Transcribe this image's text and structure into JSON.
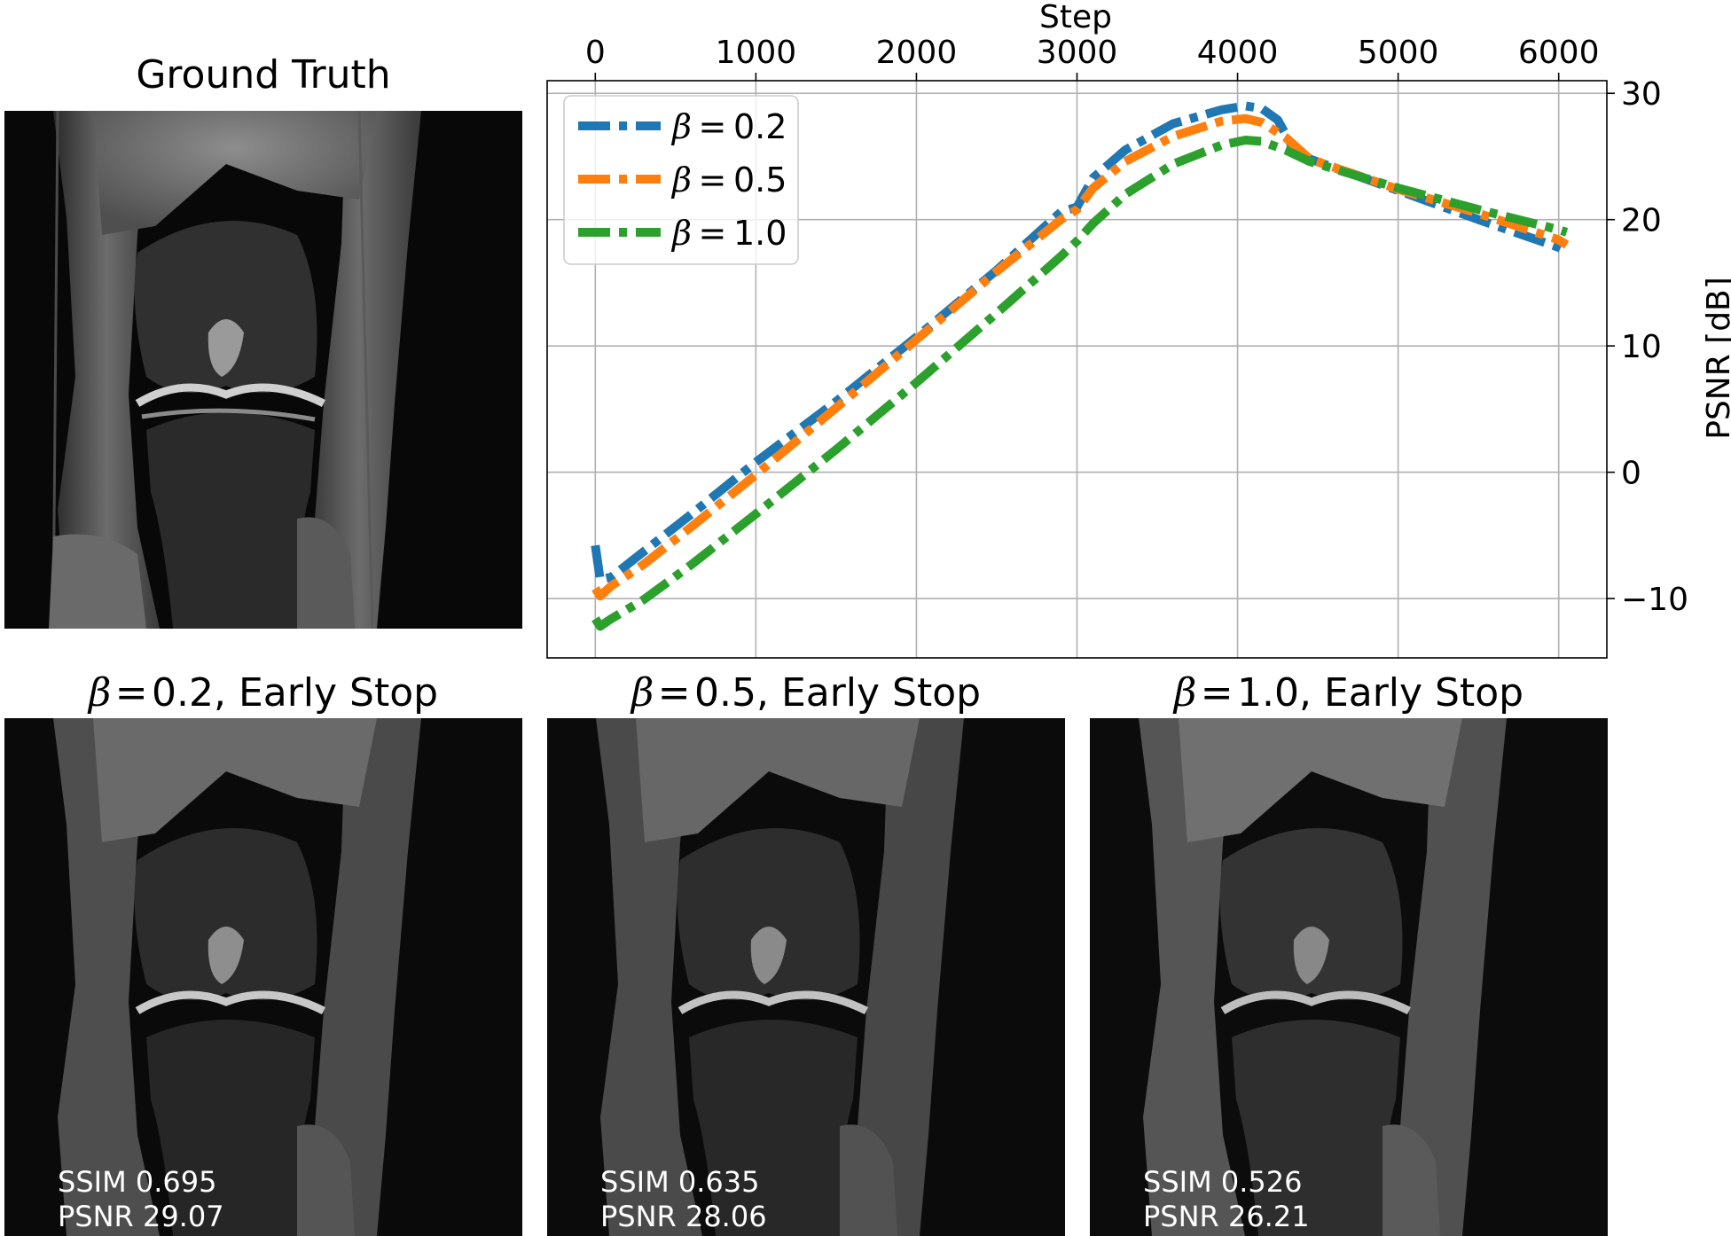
{
  "panels": {
    "ground_truth": {
      "title": "Ground Truth"
    },
    "recon": [
      {
        "beta": "0.2",
        "suffix": ", Early Stop",
        "ssim_label": "SSIM 0.695",
        "psnr_label": "PSNR 29.07"
      },
      {
        "beta": "0.5",
        "suffix": ", Early Stop",
        "ssim_label": "SSIM 0.635",
        "psnr_label": "PSNR 28.06"
      },
      {
        "beta": "1.0",
        "suffix": ", Early Stop",
        "ssim_label": "SSIM 0.526",
        "psnr_label": "PSNR 26.21"
      }
    ]
  },
  "chart_data": {
    "type": "line",
    "xlabel": "Step",
    "ylabel": "PSNR [dB]",
    "xlim": [
      -300,
      6300
    ],
    "ylim": [
      -14.7,
      31
    ],
    "xticks": [
      0,
      1000,
      2000,
      3000,
      4000,
      5000,
      6000
    ],
    "yticks": [
      -10,
      0,
      10,
      20,
      30
    ],
    "grid": true,
    "x_axis_position": "top",
    "y_axis_position": "right",
    "legend_position": "top-left",
    "series": [
      {
        "name": "β = 0.2",
        "beta": "0.2",
        "color": "#1f77b4",
        "x": [
          0,
          30,
          100,
          300,
          600,
          1000,
          1500,
          2000,
          2500,
          2900,
          3000,
          3100,
          3300,
          3600,
          3900,
          4050,
          4150,
          4250,
          4350,
          4450,
          5000,
          5500,
          6000,
          6050
        ],
        "y": [
          -5.8,
          -8.5,
          -8.3,
          -6.3,
          -3.3,
          0.8,
          5.6,
          10.7,
          16.0,
          20.6,
          21.0,
          23.3,
          25.5,
          27.6,
          28.7,
          29.0,
          28.8,
          27.9,
          25.6,
          24.8,
          22.3,
          20.0,
          17.8,
          17.5
        ]
      },
      {
        "name": "β = 0.5",
        "beta": "0.5",
        "color": "#ff7f0e",
        "x": [
          0,
          30,
          100,
          300,
          600,
          1000,
          1500,
          2000,
          2500,
          2900,
          3000,
          3100,
          3300,
          3600,
          3900,
          4050,
          4150,
          4300,
          4450,
          5000,
          5500,
          6000,
          6050
        ],
        "y": [
          -9.2,
          -9.8,
          -9.0,
          -7.3,
          -4.3,
          -0.2,
          5.1,
          10.5,
          15.9,
          20.0,
          20.8,
          22.5,
          24.6,
          26.6,
          27.8,
          28.0,
          27.7,
          26.5,
          24.8,
          22.4,
          20.5,
          18.4,
          18.0
        ]
      },
      {
        "name": "β = 1.0",
        "beta": "1.0",
        "color": "#2ca02c",
        "x": [
          0,
          30,
          100,
          300,
          600,
          1000,
          1500,
          2000,
          2500,
          2900,
          3000,
          3100,
          3300,
          3600,
          3900,
          4050,
          4150,
          4300,
          4450,
          5000,
          5500,
          6000,
          6050
        ],
        "y": [
          -11.6,
          -12.2,
          -11.6,
          -10.1,
          -7.3,
          -3.3,
          1.8,
          7.1,
          12.6,
          17.1,
          18.3,
          19.7,
          22.0,
          24.4,
          25.9,
          26.3,
          26.2,
          25.5,
          24.6,
          22.5,
          20.8,
          19.2,
          19.0
        ]
      }
    ]
  },
  "colors": {
    "background": "#ffffff",
    "image_panel_bg": "#070707",
    "grid": "#b0b0b0"
  }
}
